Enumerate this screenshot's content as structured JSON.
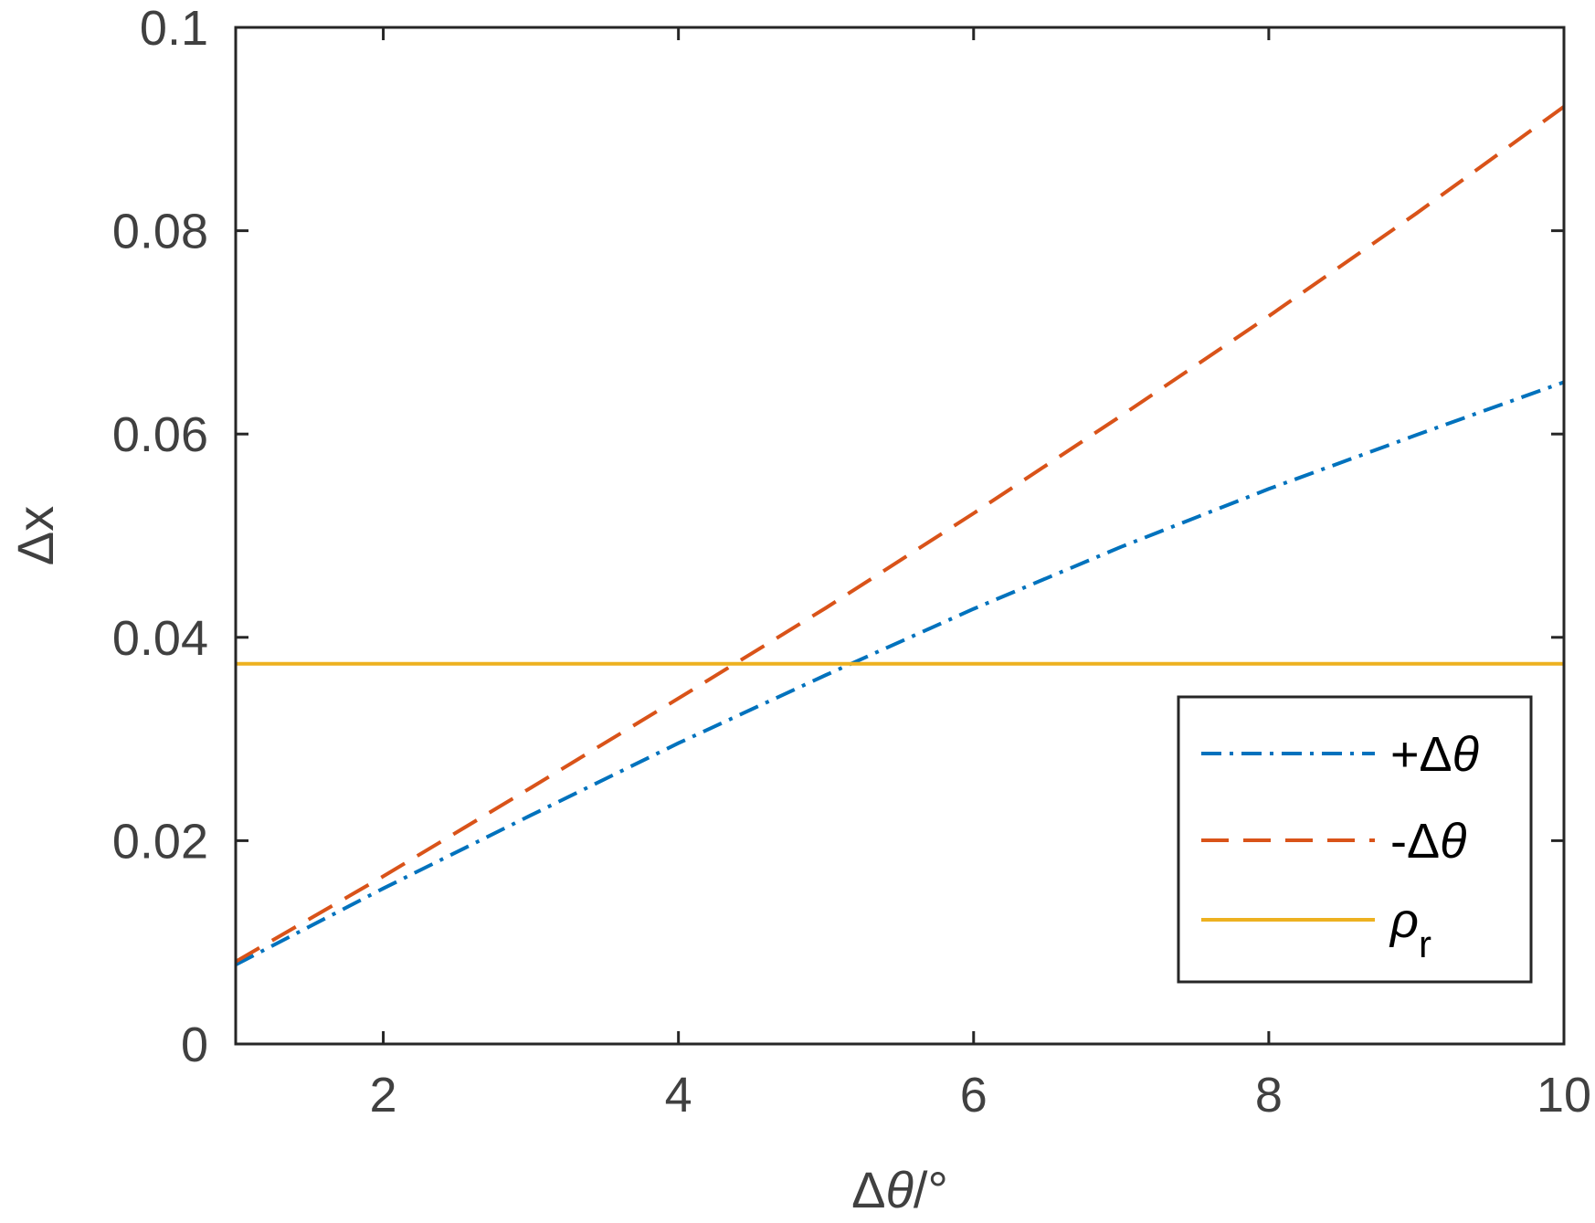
{
  "chart_data": {
    "type": "line",
    "xlabel": "Δθ/°",
    "xlabel_parts": [
      "Δ",
      "θ",
      "/°"
    ],
    "ylabel": "Δx",
    "xlim": [
      1,
      10
    ],
    "ylim": [
      0,
      0.1
    ],
    "xticks": [
      2,
      4,
      6,
      8,
      10
    ],
    "xtick_labels": [
      "2",
      "4",
      "6",
      "8",
      "10"
    ],
    "yticks": [
      0,
      0.02,
      0.04,
      0.06,
      0.08,
      0.1
    ],
    "ytick_labels": [
      "0",
      "0.02",
      "0.04",
      "0.06",
      "0.08",
      "0.1"
    ],
    "grid": false,
    "legend_position": "lower-right",
    "series": [
      {
        "name": "+Δθ",
        "name_parts": [
          "+Δ",
          "θ"
        ],
        "color": "#0072BD",
        "style": "dash-dot",
        "x": [
          1,
          2,
          3,
          4,
          5,
          6,
          7,
          8,
          9,
          10
        ],
        "y": [
          0.0078,
          0.0153,
          0.0225,
          0.0296,
          0.0363,
          0.0428,
          0.0489,
          0.0546,
          0.0599,
          0.0651
        ]
      },
      {
        "name": "-Δθ",
        "name_parts": [
          "-Δ",
          "θ"
        ],
        "color": "#D95319",
        "style": "dashed",
        "x": [
          1,
          2,
          3,
          4,
          5,
          6,
          7,
          8,
          9,
          10
        ],
        "y": [
          0.0081,
          0.0165,
          0.0252,
          0.034,
          0.0429,
          0.0522,
          0.0618,
          0.0716,
          0.0817,
          0.0922
        ]
      },
      {
        "name": "ρr",
        "name_parts": [
          "ρ",
          "r"
        ],
        "color": "#EDB120",
        "style": "solid",
        "x": [
          1,
          10
        ],
        "y": [
          0.0374,
          0.0374
        ]
      }
    ]
  }
}
